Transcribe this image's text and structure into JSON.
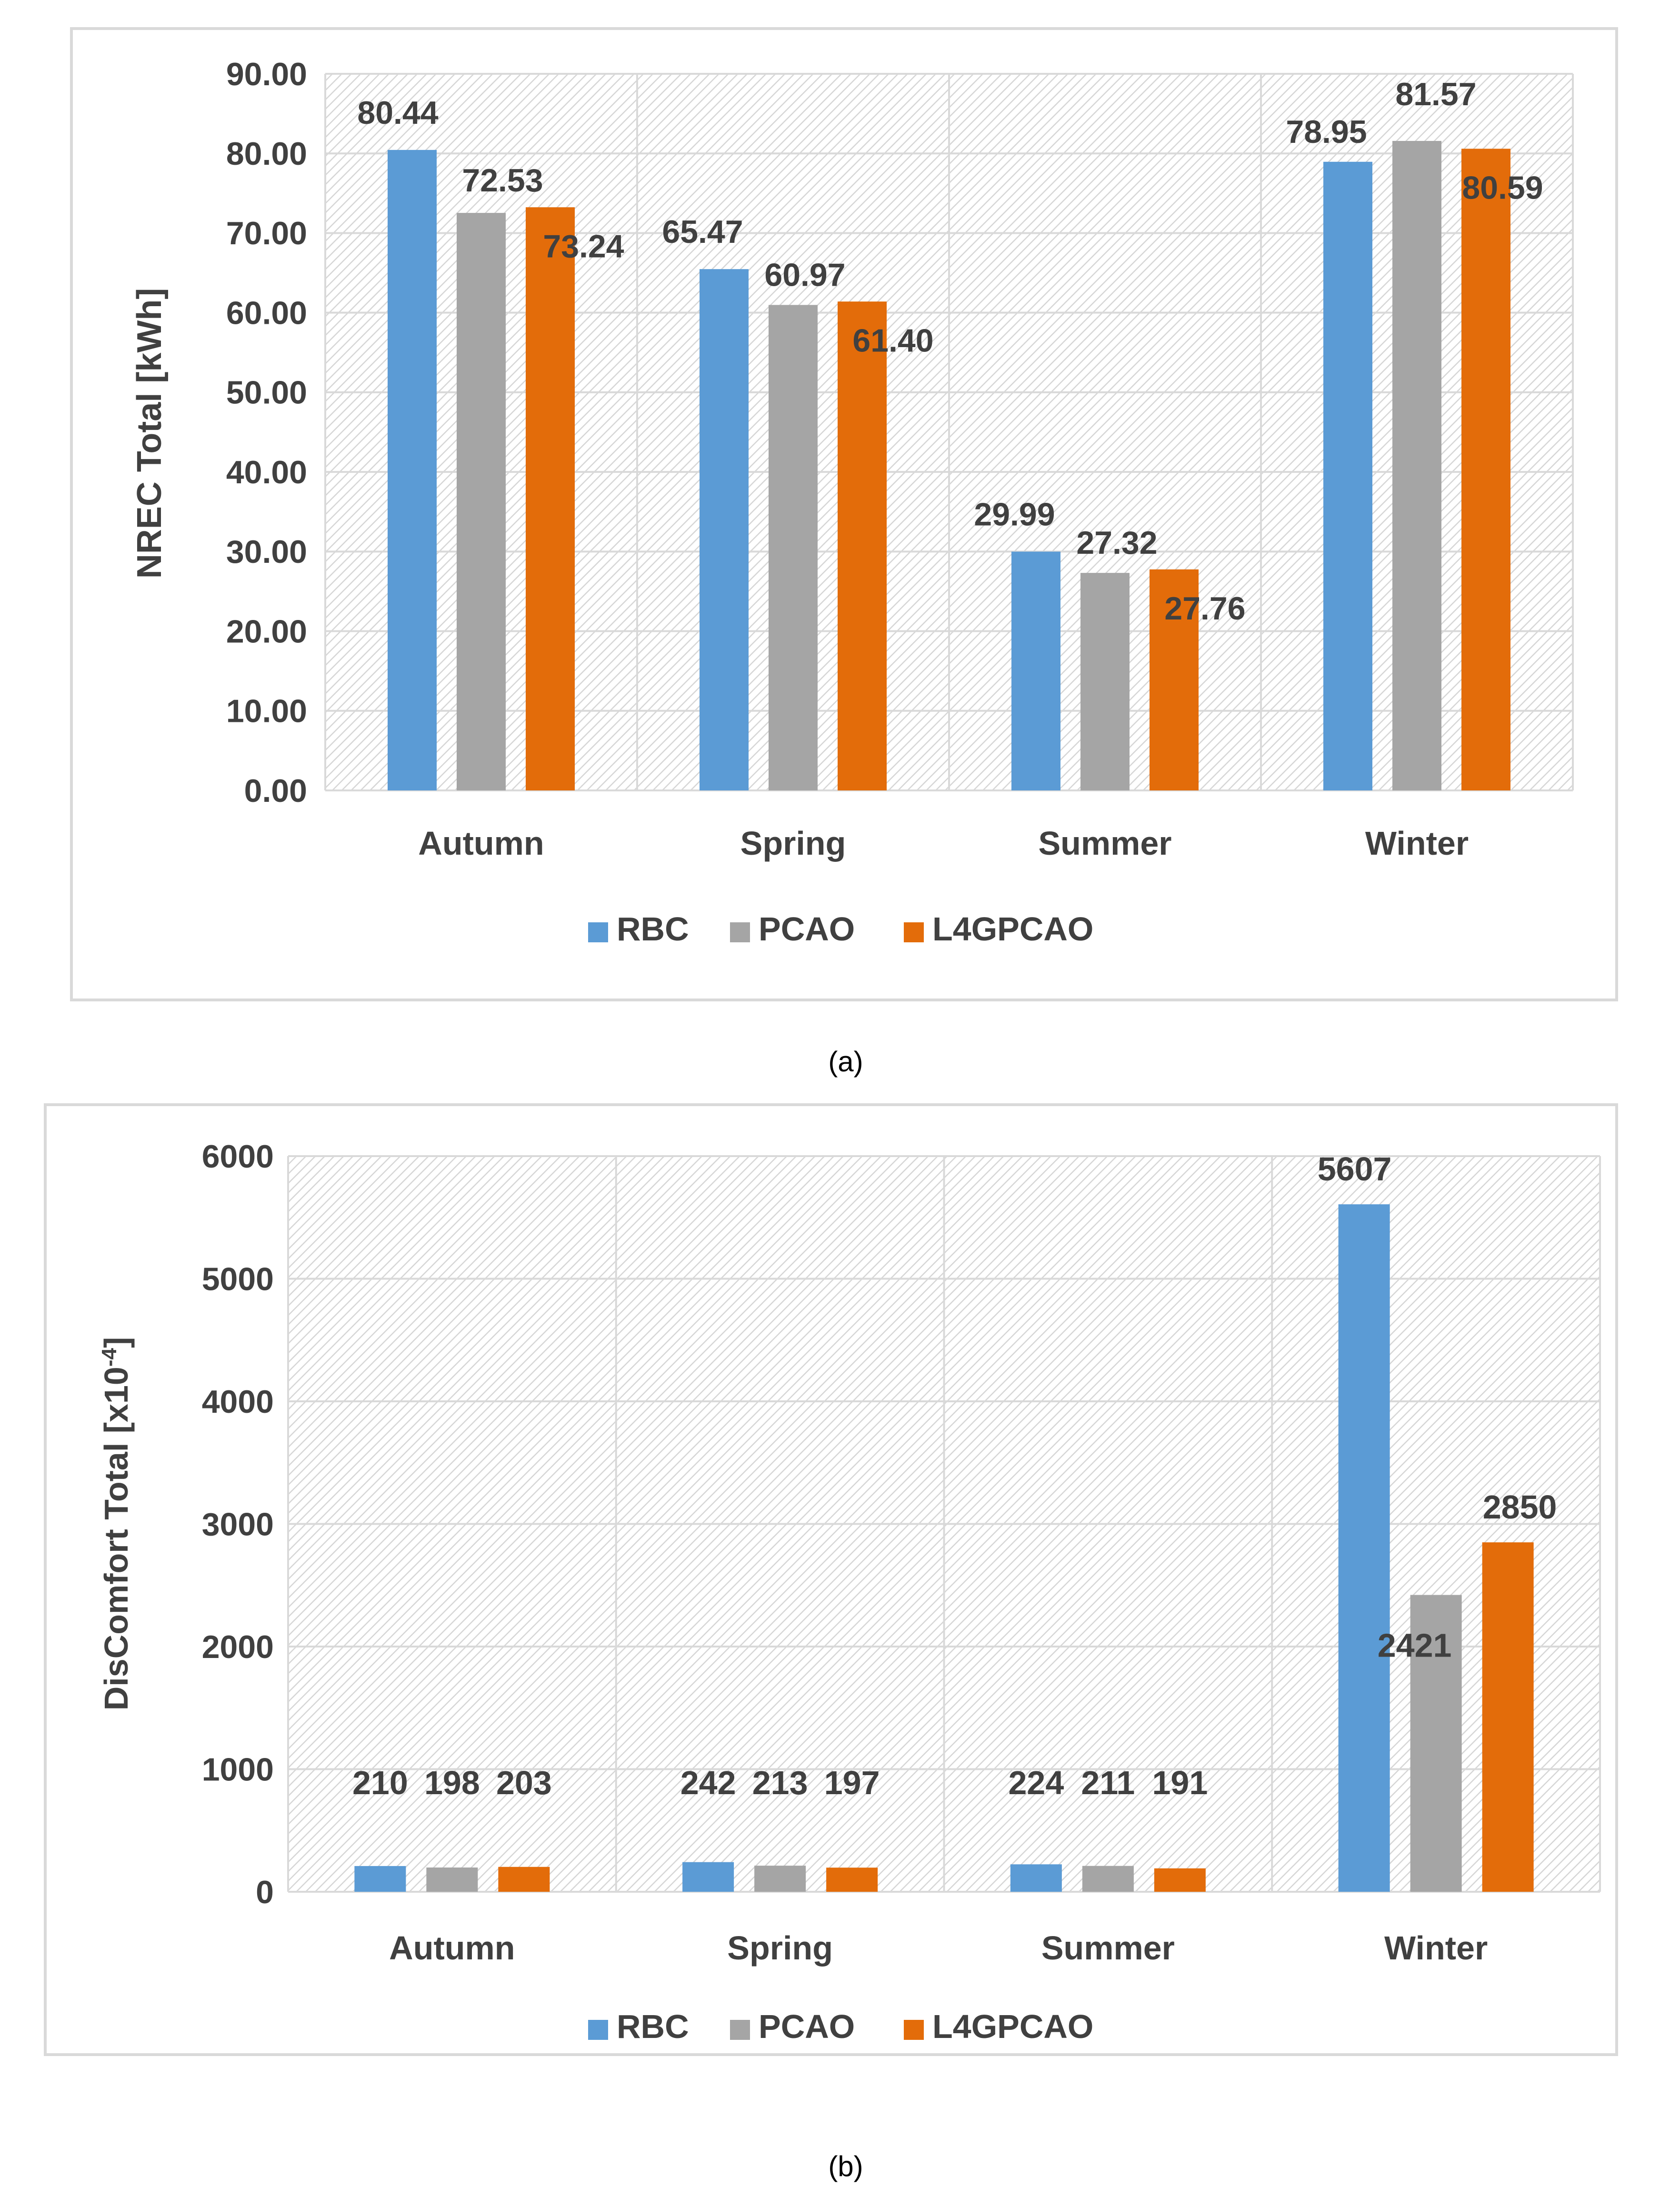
{
  "colors": {
    "RBC": "#5b9bd5",
    "PCAO": "#a5a5a5",
    "L4GPCAO": "#e36c0a",
    "text": "#404040",
    "grid": "#d9d9d9",
    "frame": "#d9d9d9"
  },
  "chart_data": [
    {
      "id": "a",
      "type": "bar",
      "caption": "(a)",
      "ylabel": "NREC Total [kWh]",
      "xlabel": "",
      "categories": [
        "Autumn",
        "Spring",
        "Summer",
        "Winter"
      ],
      "series": [
        {
          "name": "RBC",
          "values": [
            80.44,
            65.47,
            29.99,
            78.95
          ],
          "labels": [
            "80.44",
            "65.47",
            "29.99",
            "78.95"
          ]
        },
        {
          "name": "PCAO",
          "values": [
            72.53,
            60.97,
            27.32,
            81.57
          ],
          "labels": [
            "72.53",
            "60.97",
            "27.32",
            "81.57"
          ]
        },
        {
          "name": "L4GPCAO",
          "values": [
            73.24,
            61.4,
            27.76,
            80.59
          ],
          "labels": [
            "73.24",
            "61.40",
            "27.76",
            "80.59"
          ]
        }
      ],
      "ylim": [
        0,
        90
      ],
      "yticks": [
        0,
        10,
        20,
        30,
        40,
        50,
        60,
        70,
        80,
        90
      ],
      "ytick_labels": [
        "0.00",
        "10.00",
        "20.00",
        "30.00",
        "40.00",
        "50.00",
        "60.00",
        "70.00",
        "80.00",
        "90.00"
      ],
      "legend": [
        "RBC",
        "PCAO",
        "L4GPCAO"
      ],
      "legend_position": "bottom-center",
      "grid": true
    },
    {
      "id": "b",
      "type": "bar",
      "caption": "(b)",
      "ylabel": "DisComfort Total [x10",
      "ylabel_sup": "-4",
      "ylabel_end": "]",
      "xlabel": "",
      "categories": [
        "Autumn",
        "Spring",
        "Summer",
        "Winter"
      ],
      "series": [
        {
          "name": "RBC",
          "values": [
            210,
            242,
            224,
            5607
          ],
          "labels": [
            "210",
            "242",
            "224",
            "5607"
          ]
        },
        {
          "name": "PCAO",
          "values": [
            198,
            213,
            211,
            2421
          ],
          "labels": [
            "198",
            "213",
            "211",
            "2421"
          ]
        },
        {
          "name": "L4GPCAO",
          "values": [
            203,
            197,
            191,
            2850
          ],
          "labels": [
            "203",
            "197",
            "191",
            "2850"
          ]
        }
      ],
      "ylim": [
        0,
        6000
      ],
      "yticks": [
        0,
        1000,
        2000,
        3000,
        4000,
        5000,
        6000
      ],
      "ytick_labels": [
        "0",
        "1000",
        "2000",
        "3000",
        "4000",
        "5000",
        "6000"
      ],
      "legend": [
        "RBC",
        "PCAO",
        "L4GPCAO"
      ],
      "legend_position": "bottom-center",
      "grid": true
    }
  ]
}
